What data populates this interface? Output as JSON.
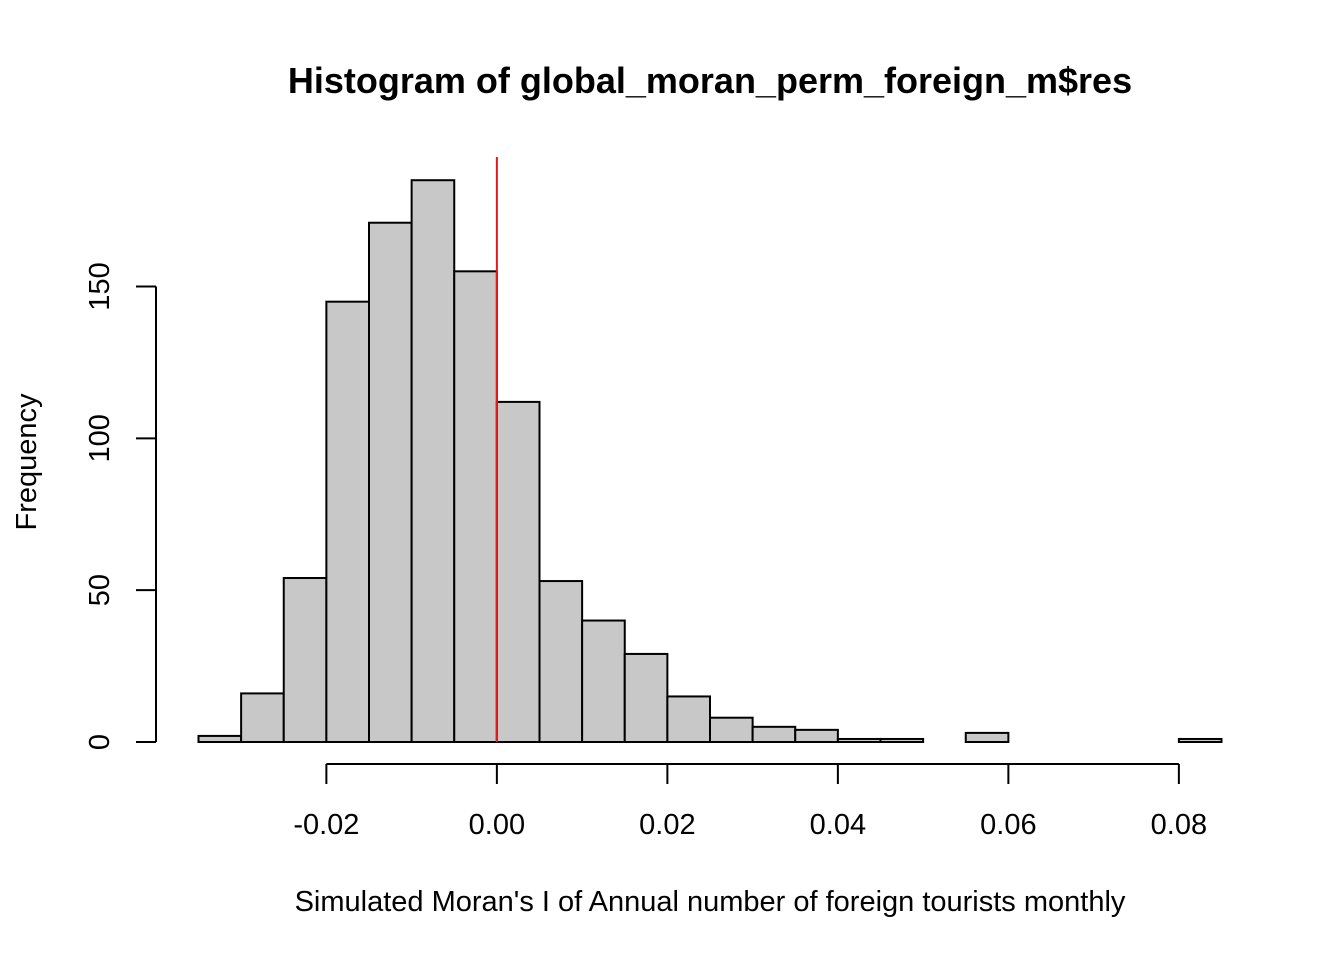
{
  "chart_data": {
    "type": "bar",
    "title": "Histogram of global_moran_perm_foreign_m$res",
    "xlabel": "Simulated Moran's I of Annual number of foreign tourists monthly",
    "ylabel": "Frequency",
    "bin_edges": [
      -0.035,
      -0.03,
      -0.025,
      -0.02,
      -0.015,
      -0.01,
      -0.005,
      0.0,
      0.005,
      0.01,
      0.015,
      0.02,
      0.025,
      0.03,
      0.035,
      0.04,
      0.045,
      0.05,
      0.055,
      0.06,
      0.065,
      0.07,
      0.075,
      0.08,
      0.085
    ],
    "values": [
      2,
      16,
      54,
      145,
      171,
      185,
      155,
      112,
      53,
      40,
      29,
      15,
      8,
      5,
      4,
      1,
      1,
      0,
      3,
      0,
      0,
      0,
      0,
      1
    ],
    "xlim": [
      -0.035,
      0.085
    ],
    "ylim": [
      0,
      190
    ],
    "x_ticks": [
      -0.02,
      0.0,
      0.02,
      0.04,
      0.06,
      0.08
    ],
    "x_tick_labels": [
      "-0.02",
      "0.00",
      "0.02",
      "0.04",
      "0.06",
      "0.08"
    ],
    "y_ticks": [
      0,
      50,
      100,
      150
    ],
    "y_tick_labels": [
      "0",
      "50",
      "100",
      "150"
    ],
    "reference_line": {
      "x": 0.0
    },
    "bar_color": "#c8c8c8",
    "bar_border_color": "#000000",
    "reference_line_color": "#e31a1c",
    "grid": false,
    "legend": "none"
  }
}
